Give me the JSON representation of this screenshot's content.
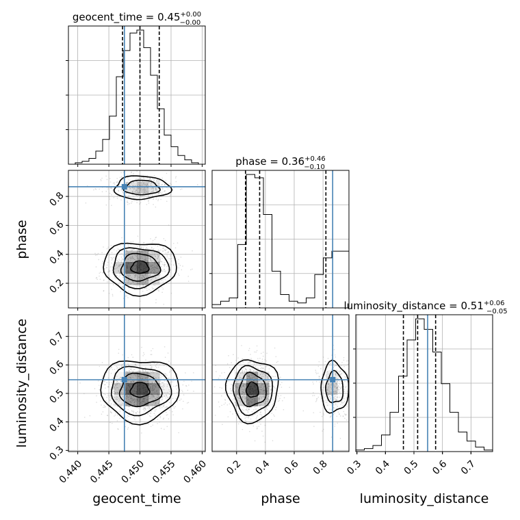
{
  "colors": {
    "truth": "#4682b4",
    "hist_line": "#000000",
    "quantile": "#000000",
    "grid": "#b0b0b0",
    "scatter": "#999999",
    "density_dark": "#1a1a1a"
  },
  "titles": {
    "geocent_time": {
      "prefix": "geocent_time = 0.45",
      "sup": "+0.00",
      "sub": "−0.00"
    },
    "phase": {
      "prefix": "phase = 0.36",
      "sup": "+0.46",
      "sub": "−0.10"
    },
    "luminosity_distance": {
      "prefix": "luminosity_distance = 0.51",
      "sup": "+0.06",
      "sub": "−0.05"
    }
  },
  "chart_data": {
    "type": "corner",
    "parameters": [
      "geocent_time",
      "phase",
      "luminosity_distance"
    ],
    "axis_labels": {
      "x": [
        "geocent_time",
        "phase",
        "luminosity_distance"
      ],
      "y": [
        "",
        "phase",
        "luminosity_distance"
      ]
    },
    "ranges": {
      "geocent_time": [
        0.4385,
        0.4605
      ],
      "phase": [
        0.03,
        0.98
      ],
      "luminosity_distance": [
        0.296,
        0.776
      ]
    },
    "ticks": {
      "geocent_time": [
        "0.440",
        "0.445",
        "0.450",
        "0.455",
        "0.460"
      ],
      "phase": [
        "0.2",
        "0.4",
        "0.6",
        "0.8"
      ],
      "phase_y": [
        "0.2",
        "0.4",
        "0.6",
        "0.8"
      ],
      "luminosity_distance": [
        "0.3",
        "0.4",
        "0.5",
        "0.6",
        "0.7"
      ],
      "luminosity_distance_y": [
        "0.3",
        "0.4",
        "0.5",
        "0.6",
        "0.7"
      ]
    },
    "truths": {
      "geocent_time": 0.4475,
      "phase": 0.867,
      "luminosity_distance": 0.548
    },
    "quantiles": {
      "geocent_time": [
        0.4472,
        0.45,
        0.4531
      ],
      "phase": [
        0.262,
        0.36,
        0.82
      ],
      "luminosity_distance": [
        0.463,
        0.513,
        0.576
      ]
    },
    "histograms": {
      "geocent_time": [
        0,
        1,
        2,
        4,
        9,
        17,
        33,
        60,
        78,
        90,
        92,
        80,
        61,
        38,
        20,
        12,
        6,
        3,
        1,
        0
      ],
      "phase": [
        2,
        4,
        6,
        38,
        80,
        78,
        56,
        22,
        8,
        4,
        3,
        6,
        20,
        30,
        34,
        34
      ],
      "luminosity_distance": [
        1,
        2,
        4,
        11,
        26,
        50,
        74,
        88,
        81,
        66,
        45,
        26,
        13,
        7,
        3,
        1
      ]
    },
    "grid": true
  }
}
